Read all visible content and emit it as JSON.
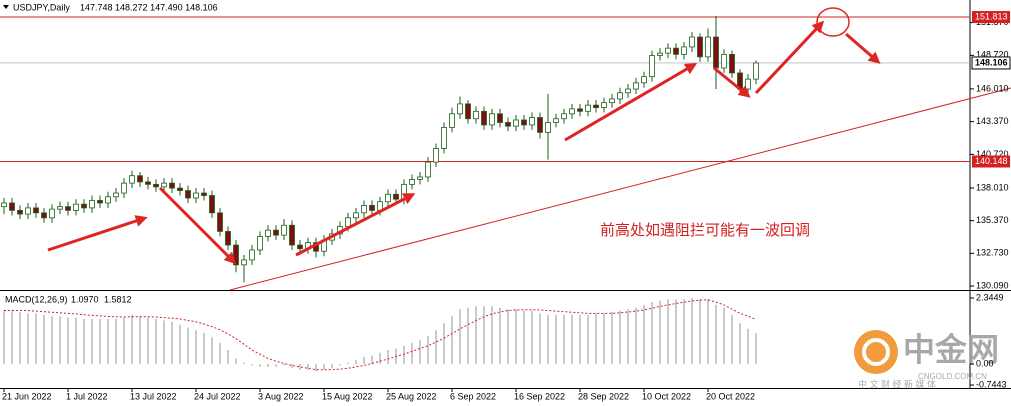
{
  "chart_data": {
    "type": "candlestick",
    "title": "USDJPY,Daily",
    "header_ohlc": "147.748 148.272 147.490 148.106",
    "ylim": [
      129.77,
      153.19
    ],
    "yticks": [
      {
        "value": 151.37,
        "label": "151.370"
      },
      {
        "value": 148.72,
        "label": "148.720"
      },
      {
        "value": 146.01,
        "label": "146.010"
      },
      {
        "value": 143.37,
        "label": "143.370"
      },
      {
        "value": 140.72,
        "label": "140.720"
      },
      {
        "value": 138.01,
        "label": "138.010"
      },
      {
        "value": 135.37,
        "label": "135.370"
      },
      {
        "value": 132.73,
        "label": "132.730"
      },
      {
        "value": 130.09,
        "label": "130.090"
      }
    ],
    "xticks": [
      {
        "value": 0,
        "label": "21 Jun 2022"
      },
      {
        "value": 8,
        "label": "1 Jul 2022"
      },
      {
        "value": 16,
        "label": "13 Jul 2022"
      },
      {
        "value": 24,
        "label": "24 Jul 2022"
      },
      {
        "value": 32,
        "label": "3 Aug 2022"
      },
      {
        "value": 40,
        "label": "15 Aug 2022"
      },
      {
        "value": 48,
        "label": "25 Aug 2022"
      },
      {
        "value": 56,
        "label": "6 Sep 2022"
      },
      {
        "value": 64,
        "label": "16 Sep 2022"
      },
      {
        "value": 72,
        "label": "28 Sep 2022"
      },
      {
        "value": 80,
        "label": "10 Oct 2022"
      },
      {
        "value": 88,
        "label": "20 Oct 2022"
      }
    ],
    "levels": [
      {
        "value": 151.813,
        "color": "#d42020"
      },
      {
        "value": 140.148,
        "color": "#d42020"
      }
    ],
    "last_price": 148.106,
    "up_color": "#ffffff",
    "down_color": "#7a1010",
    "wick_color": "#1e5e1e",
    "open": [
      136.5,
      136.8,
      136.2,
      135.9,
      136.4,
      136.0,
      135.6,
      136.3,
      136.5,
      136.2,
      136.7,
      136.4,
      137.0,
      136.8,
      137.3,
      137.6,
      138.4,
      139.0,
      138.5,
      138.3,
      138.1,
      138.4,
      138.0,
      137.8,
      137.2,
      137.6,
      137.4,
      136.0,
      134.5,
      133.4,
      131.8,
      132.2,
      133.0,
      134.1,
      134.6,
      134.2,
      135.0,
      133.4,
      133.1,
      133.6,
      132.9,
      133.8,
      134.3,
      134.9,
      135.6,
      136.0,
      136.6,
      136.2,
      136.9,
      137.5,
      137.1,
      138.3,
      138.7,
      138.9,
      140.1,
      141.2,
      142.9,
      144.0,
      144.8,
      143.6,
      144.2,
      143.1,
      144.0,
      143.3,
      143.0,
      143.5,
      143.1,
      143.7,
      142.5,
      143.3,
      143.6,
      144.0,
      144.4,
      144.2,
      144.7,
      144.5,
      144.9,
      145.2,
      145.7,
      146.0,
      146.5,
      147.0,
      148.7,
      148.9,
      149.3,
      148.8,
      149.4,
      150.2,
      148.6,
      150.2,
      147.7,
      148.8,
      147.3,
      146.0,
      146.8
    ],
    "high": [
      137.2,
      137.2,
      136.6,
      136.8,
      136.8,
      136.4,
      136.7,
      136.9,
      136.9,
      137.1,
      137.1,
      137.4,
      137.4,
      137.7,
      138.0,
      138.8,
      139.4,
      139.3,
      138.9,
      138.7,
      138.8,
      138.8,
      138.4,
      138.2,
      138.0,
      138.0,
      137.8,
      136.4,
      134.9,
      133.8,
      132.6,
      133.4,
      134.5,
      135.0,
      135.0,
      135.5,
      135.4,
      133.8,
      134.0,
      134.0,
      134.2,
      134.7,
      135.3,
      136.0,
      136.4,
      137.0,
      137.0,
      137.3,
      137.9,
      137.9,
      138.7,
      139.1,
      139.3,
      140.5,
      141.6,
      143.3,
      144.5,
      145.4,
      145.1,
      144.6,
      144.6,
      144.4,
      144.4,
      143.7,
      143.9,
      143.9,
      144.1,
      144.1,
      145.6,
      144.0,
      144.4,
      144.8,
      144.8,
      145.1,
      145.1,
      145.3,
      145.6,
      146.1,
      146.4,
      146.9,
      147.4,
      149.1,
      149.3,
      149.7,
      149.7,
      149.8,
      150.6,
      150.5,
      150.9,
      151.9,
      149.2,
      149.1,
      147.6,
      147.2,
      148.3
    ],
    "low": [
      135.9,
      135.8,
      135.5,
      135.5,
      135.6,
      135.2,
      135.2,
      135.9,
      135.8,
      135.8,
      136.0,
      136.0,
      136.4,
      136.4,
      136.9,
      137.2,
      138.0,
      138.1,
      137.9,
      137.7,
      137.7,
      137.6,
      137.4,
      136.8,
      136.8,
      137.0,
      135.6,
      134.1,
      133.0,
      131.2,
      130.4,
      131.8,
      132.6,
      133.7,
      133.8,
      133.8,
      133.0,
      132.6,
      132.7,
      132.4,
      132.5,
      133.4,
      133.9,
      134.5,
      135.2,
      135.6,
      135.8,
      135.8,
      136.5,
      136.7,
      136.7,
      137.9,
      138.3,
      138.5,
      139.7,
      140.8,
      142.5,
      143.6,
      143.2,
      143.2,
      142.7,
      142.7,
      142.9,
      142.6,
      142.6,
      142.7,
      142.7,
      142.0,
      140.3,
      142.9,
      143.2,
      143.6,
      143.8,
      143.8,
      144.1,
      144.1,
      144.5,
      144.8,
      145.3,
      145.6,
      146.1,
      146.6,
      148.3,
      148.5,
      148.4,
      148.4,
      149.0,
      148.2,
      148.2,
      146.0,
      147.3,
      146.9,
      145.5,
      145.6,
      146.4
    ],
    "close": [
      136.8,
      136.2,
      135.9,
      136.4,
      136.0,
      135.6,
      136.3,
      136.5,
      136.2,
      136.7,
      136.4,
      137.0,
      136.8,
      137.3,
      137.6,
      138.4,
      139.0,
      138.5,
      138.3,
      138.1,
      138.4,
      138.0,
      137.8,
      137.2,
      137.6,
      137.4,
      136.0,
      134.5,
      133.4,
      131.8,
      132.2,
      133.0,
      134.1,
      134.6,
      134.2,
      135.0,
      133.4,
      133.1,
      133.6,
      132.9,
      133.8,
      134.3,
      134.9,
      135.6,
      136.0,
      136.6,
      136.2,
      136.9,
      137.5,
      137.1,
      138.3,
      138.7,
      138.9,
      140.1,
      141.2,
      142.9,
      144.0,
      144.8,
      143.6,
      144.2,
      143.1,
      144.0,
      143.3,
      143.0,
      143.5,
      143.1,
      143.7,
      142.5,
      143.3,
      143.6,
      144.0,
      144.4,
      144.2,
      144.7,
      144.5,
      144.9,
      145.2,
      145.7,
      146.0,
      146.5,
      147.0,
      148.7,
      148.9,
      149.3,
      148.8,
      149.4,
      150.2,
      148.6,
      150.2,
      147.7,
      148.8,
      147.3,
      146.0,
      146.8,
      148.106
    ],
    "annotation": "前高处如遇阻拦可能有一波回调",
    "macd": {
      "title": "MACD(12,26,9)",
      "values": [
        {
          "value": 1.097,
          "label": "1.0970"
        },
        1.5812
      ],
      "ylim": [
        -0.85,
        2.63
      ],
      "yticks": [
        2.3449,
        {
          "value": 0,
          "label": "0.00"
        },
        -0.7443
      ],
      "hist_color": "#b8b8b8",
      "signal_color": "#d42020",
      "histogram": [
        1.9,
        1.9,
        1.85,
        1.8,
        1.8,
        1.75,
        1.7,
        1.7,
        1.65,
        1.65,
        1.6,
        1.6,
        1.6,
        1.6,
        1.6,
        1.65,
        1.75,
        1.7,
        1.65,
        1.6,
        1.55,
        1.5,
        1.4,
        1.3,
        1.2,
        1.1,
        0.95,
        0.75,
        0.5,
        0.2,
        0.05,
        -0.05,
        -0.1,
        -0.1,
        -0.1,
        -0.05,
        -0.15,
        -0.2,
        -0.2,
        -0.25,
        -0.2,
        -0.15,
        -0.05,
        0.05,
        0.15,
        0.25,
        0.3,
        0.4,
        0.5,
        0.55,
        0.65,
        0.75,
        0.85,
        1.0,
        1.2,
        1.45,
        1.7,
        1.95,
        2.0,
        2.05,
        2.05,
        2.05,
        2.0,
        1.95,
        1.95,
        1.9,
        1.9,
        1.8,
        1.75,
        1.75,
        1.75,
        1.75,
        1.75,
        1.75,
        1.8,
        1.8,
        1.85,
        1.9,
        1.95,
        2.0,
        2.1,
        2.2,
        2.25,
        2.3,
        2.3,
        2.3,
        2.35,
        2.3,
        2.3,
        2.1,
        2.0,
        1.75,
        1.45,
        1.25,
        1.097
      ],
      "signal": [
        1.9,
        1.9,
        1.9,
        1.9,
        1.88,
        1.86,
        1.84,
        1.82,
        1.8,
        1.78,
        1.75,
        1.73,
        1.71,
        1.69,
        1.68,
        1.67,
        1.68,
        1.68,
        1.68,
        1.67,
        1.65,
        1.63,
        1.6,
        1.55,
        1.5,
        1.42,
        1.33,
        1.22,
        1.07,
        0.9,
        0.7,
        0.5,
        0.35,
        0.2,
        0.1,
        0.02,
        -0.05,
        -0.1,
        -0.15,
        -0.2,
        -0.2,
        -0.2,
        -0.18,
        -0.15,
        -0.1,
        -0.05,
        0.02,
        0.1,
        0.18,
        0.27,
        0.35,
        0.45,
        0.55,
        0.65,
        0.78,
        0.92,
        1.08,
        1.25,
        1.4,
        1.55,
        1.68,
        1.78,
        1.85,
        1.9,
        1.92,
        1.93,
        1.93,
        1.92,
        1.9,
        1.88,
        1.86,
        1.84,
        1.82,
        1.8,
        1.8,
        1.8,
        1.8,
        1.82,
        1.85,
        1.88,
        1.92,
        1.98,
        2.05,
        2.1,
        2.15,
        2.2,
        2.24,
        2.27,
        2.28,
        2.2,
        2.1,
        1.95,
        1.8,
        1.7,
        1.5812
      ]
    },
    "watermark": {
      "brand": "中金网",
      "site": "CNGOLD.COM.CN",
      "slogan": "中 文 财 经 新 媒 体"
    }
  }
}
